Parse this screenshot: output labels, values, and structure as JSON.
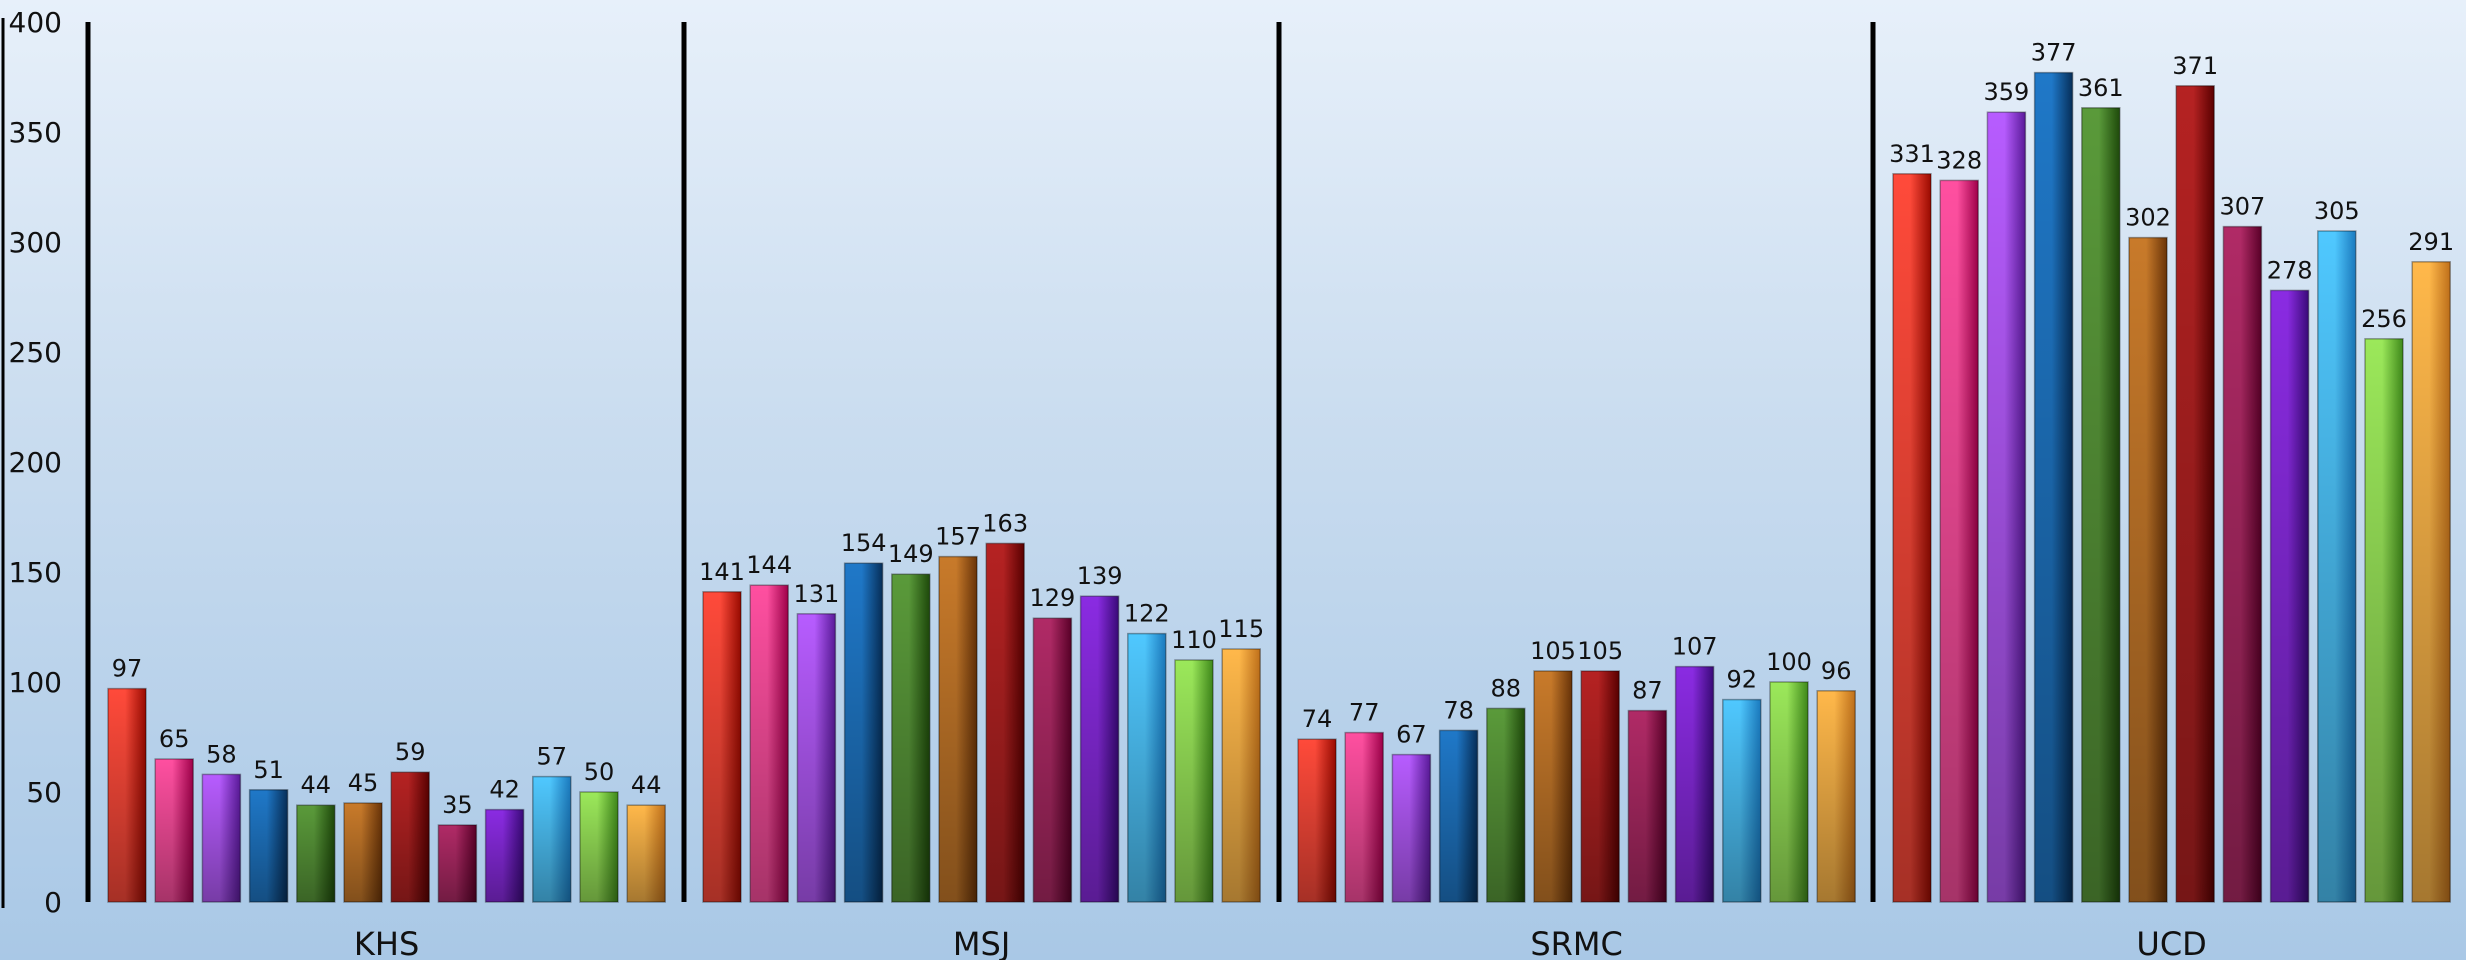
{
  "chart_data": {
    "type": "bar",
    "categories": [
      "KHS",
      "MSJ",
      "SRMC",
      "UCD"
    ],
    "series": [
      {
        "values": [
          97,
          141,
          74,
          331
        ]
      },
      {
        "values": [
          65,
          144,
          77,
          328
        ]
      },
      {
        "values": [
          58,
          131,
          67,
          359
        ]
      },
      {
        "values": [
          51,
          154,
          78,
          377
        ]
      },
      {
        "values": [
          44,
          149,
          88,
          361
        ]
      },
      {
        "values": [
          45,
          157,
          105,
          302
        ]
      },
      {
        "values": [
          59,
          163,
          105,
          371
        ]
      },
      {
        "values": [
          35,
          129,
          87,
          307
        ]
      },
      {
        "values": [
          42,
          139,
          107,
          278
        ]
      },
      {
        "values": [
          57,
          122,
          92,
          305
        ]
      },
      {
        "values": [
          50,
          110,
          100,
          256
        ]
      },
      {
        "values": [
          44,
          115,
          96,
          291
        ]
      }
    ],
    "yticks": [
      0,
      50,
      100,
      150,
      200,
      250,
      300,
      350,
      400
    ],
    "ylim": [
      0,
      400
    ],
    "grid": false,
    "legend": "none",
    "colors": [
      [
        "#ff4a3a",
        "#9a0a00"
      ],
      [
        "#ff4fa0",
        "#a0004a"
      ],
      [
        "#b75cff",
        "#5a1a9a"
      ],
      [
        "#1f78c8",
        "#062f5a"
      ],
      [
        "#5a9a3a",
        "#1e4a0a"
      ],
      [
        "#c87a2a",
        "#6a3408"
      ],
      [
        "#b52222",
        "#5a0000"
      ],
      [
        "#b02a66",
        "#5a0028"
      ],
      [
        "#8a2be2",
        "#3a0a7a"
      ],
      [
        "#4fc8ff",
        "#1a7abf"
      ],
      [
        "#9be85a",
        "#3f8a1a"
      ],
      [
        "#ffb84a",
        "#c0701a"
      ]
    ],
    "separator_color": "#000000",
    "axis_color": "#000000"
  }
}
